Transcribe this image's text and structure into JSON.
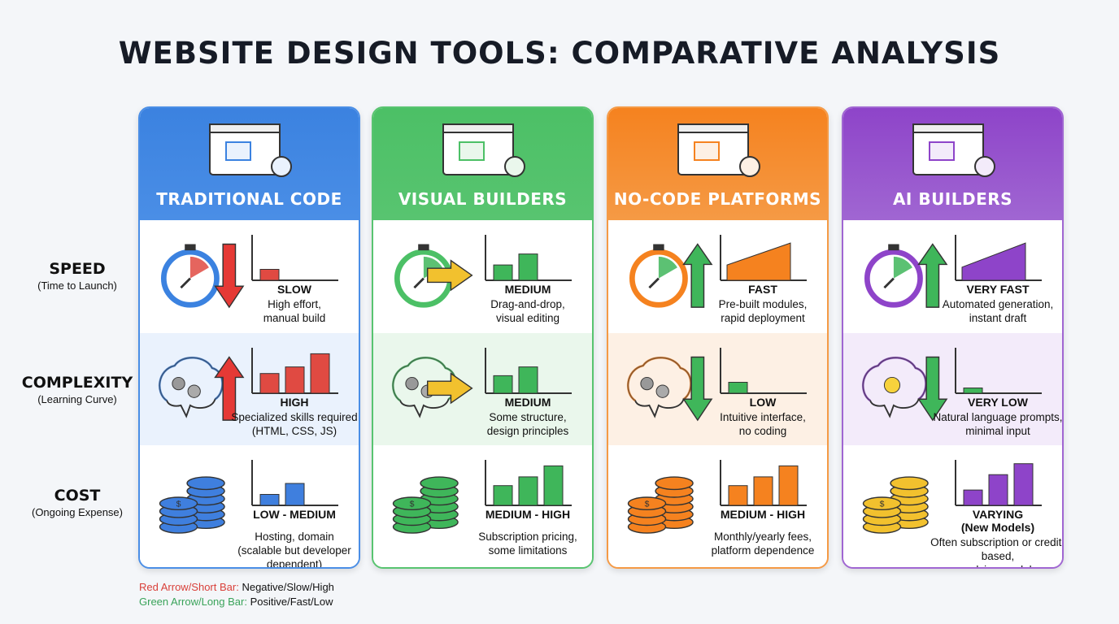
{
  "title": "WEBSITE DESIGN TOOLS: COMPARATIVE ANALYSIS",
  "rows": [
    {
      "main": "SPEED",
      "sub": "(Time to Launch)"
    },
    {
      "main": "COMPLEXITY",
      "sub": "(Learning Curve)"
    },
    {
      "main": "COST",
      "sub": "(Ongoing Expense)"
    }
  ],
  "columns": [
    {
      "name": "TRADITIONAL CODE",
      "icon": "code-window-gears-icon",
      "colors": {
        "head": "#3b82e0",
        "light": "#eaf2fd",
        "border": "#4a8ee6"
      },
      "cells": [
        {
          "icon": "stopwatch-down-arrow-icon",
          "arrow": "down",
          "arrow_color": "#e53935",
          "chart": "bars",
          "bar_color": "#e04a42",
          "levels": [
            0.25
          ],
          "level": "SLOW",
          "desc": [
            "High effort,",
            "manual build"
          ]
        },
        {
          "icon": "brain-gears-up-arrow-icon",
          "arrow": "up",
          "arrow_color": "#e53935",
          "chart": "bars",
          "bar_color": "#e04a42",
          "levels": [
            0.45,
            0.6,
            0.9
          ],
          "level": "HIGH",
          "desc": [
            "Specialized skills required",
            "(HTML, CSS, JS)"
          ]
        },
        {
          "icon": "coins-dollar-icon",
          "coin_color": "#3f7fde",
          "chart": "bars",
          "bar_color": "#3f7fde",
          "levels": [
            0.25,
            0.5
          ],
          "level": "LOW - MEDIUM",
          "desc": [
            "Hosting, domain",
            "(scalable but developer dependent)"
          ]
        }
      ]
    },
    {
      "name": "VISUAL BUILDERS",
      "icon": "drag-drop-window-cursor-icon",
      "colors": {
        "head": "#4cc066",
        "light": "#eaf7ec",
        "border": "#58c470"
      },
      "cells": [
        {
          "icon": "stopwatch-right-arrow-icon",
          "arrow": "right",
          "arrow_color": "#f2c12e",
          "chart": "bars",
          "bar_color": "#3fb65a",
          "levels": [
            0.35,
            0.6
          ],
          "level": "MEDIUM",
          "desc": [
            "Drag-and-drop,",
            "visual editing"
          ]
        },
        {
          "icon": "brain-gears-right-arrow-icon",
          "arrow": "right",
          "arrow_color": "#f2c12e",
          "chart": "bars",
          "bar_color": "#3fb65a",
          "levels": [
            0.4,
            0.6
          ],
          "level": "MEDIUM",
          "desc": [
            "Some structure,",
            "design principles"
          ]
        },
        {
          "icon": "coins-dollar-icon",
          "coin_color": "#3fb65a",
          "chart": "bars",
          "bar_color": "#3fb65a",
          "levels": [
            0.45,
            0.65,
            0.9
          ],
          "level": "MEDIUM - HIGH",
          "desc": [
            "Subscription pricing,",
            "some limitations"
          ]
        }
      ]
    },
    {
      "name": "NO-CODE PLATFORMS",
      "icon": "blocks-window-magic-wand-icon",
      "colors": {
        "head": "#f5821f",
        "light": "#fdf0e4",
        "border": "#f59a45"
      },
      "cells": [
        {
          "icon": "stopwatch-up-arrow-icon",
          "arrow": "up",
          "arrow_color": "#3fb65a",
          "chart": "ramp",
          "bar_color": "#f5821f",
          "levels": [
            0.35,
            0.85
          ],
          "level": "FAST",
          "desc": [
            "Pre-built modules,",
            "rapid deployment"
          ]
        },
        {
          "icon": "brain-gears-down-arrow-icon",
          "arrow": "down",
          "arrow_color": "#3fb65a",
          "chart": "bars",
          "bar_color": "#3fb65a",
          "levels": [
            0.25
          ],
          "level": "LOW",
          "desc": [
            "Intuitive interface,",
            "no coding"
          ]
        },
        {
          "icon": "coins-dollar-icon",
          "coin_color": "#f5821f",
          "chart": "bars",
          "bar_color": "#f5821f",
          "levels": [
            0.45,
            0.65,
            0.9
          ],
          "level": "MEDIUM - HIGH",
          "desc": [
            "Monthly/yearly fees,",
            "platform dependence"
          ]
        }
      ]
    },
    {
      "name": "AI BUILDERS",
      "icon": "robot-window-sparkle-icon",
      "colors": {
        "head": "#8e44c9",
        "light": "#f3ebfa",
        "border": "#a066d2"
      },
      "cells": [
        {
          "icon": "stopwatch-up-arrow-sparkle-icon",
          "arrow": "up",
          "arrow_color": "#3fb65a",
          "chart": "ramp",
          "bar_color": "#8e44c9",
          "levels": [
            0.3,
            0.85
          ],
          "level": "VERY FAST",
          "desc": [
            "Automated generation,",
            "instant draft"
          ]
        },
        {
          "icon": "brain-lightbulb-down-arrow-icon",
          "arrow": "down",
          "arrow_color": "#3fb65a",
          "chart": "bars",
          "bar_color": "#3fb65a",
          "levels": [
            0.12
          ],
          "level": "VERY LOW",
          "desc": [
            "Natural language prompts,",
            "minimal input"
          ]
        },
        {
          "icon": "coins-dollar-icon",
          "coin_color": "#f2c12e",
          "chart": "bars",
          "bar_color": "#8e44c9",
          "levels": [
            0.35,
            0.7,
            0.95
          ],
          "level": "VARYING",
          "level2": "(New Models)",
          "desc": [
            "Often subscription or credit-based,",
            "evolving models"
          ]
        }
      ]
    }
  ],
  "legend": [
    {
      "key": "Red Arrow/Short Bar:",
      "value": "Negative/Slow/High",
      "color": "#d9403a"
    },
    {
      "key": "Green Arrow/Long Bar:",
      "value": "Positive/Fast/Low",
      "color": "#3aa35a"
    }
  ]
}
